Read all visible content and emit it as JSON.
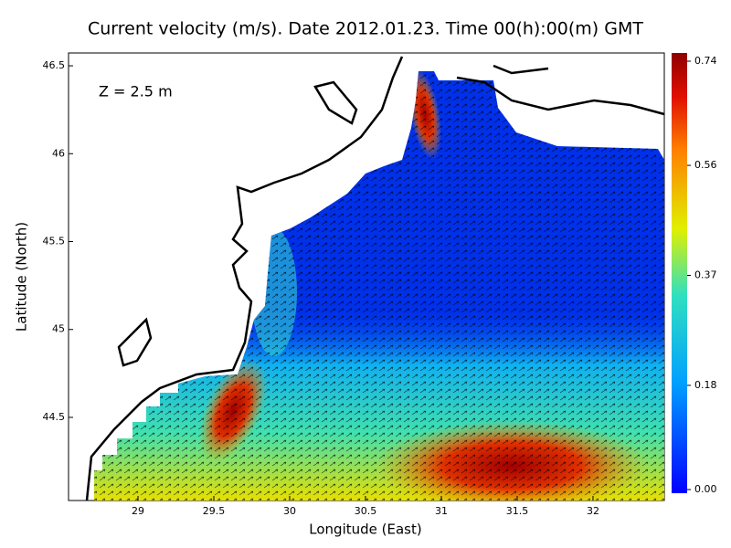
{
  "chart_data": {
    "type": "map",
    "title": "Current velocity (m/s). Date 2012.01.23. Time 00(h):00(m) GMT",
    "annotation": "Z = 2.5 m",
    "x_label": "Longitude (East)",
    "y_label": "Latitude (North)",
    "xlim": [
      28.542,
      32.47
    ],
    "ylim": [
      44.027,
      46.573
    ],
    "xticks": [
      29,
      29.5,
      30,
      30.5,
      31,
      31.5,
      32
    ],
    "yticks": [
      44.5,
      45,
      45.5,
      46,
      46.5
    ],
    "colormap": "jet",
    "colorbar_lim": [
      0,
      0.74
    ],
    "colorbar_ticks": [
      {
        "value": 0,
        "label": "0.00"
      },
      {
        "value": 0.18,
        "label": "0.18"
      },
      {
        "value": 0.37,
        "label": "0.37"
      },
      {
        "value": 0.56,
        "label": "0.56"
      },
      {
        "value": 0.74,
        "label": "0.74"
      }
    ]
  }
}
